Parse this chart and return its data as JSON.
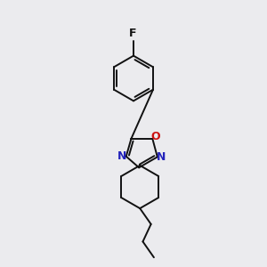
{
  "bg_color": "#ebebee",
  "bond_color": "#111111",
  "N_color": "#2222bb",
  "O_color": "#cc1111",
  "line_width": 1.4,
  "figsize": [
    3.0,
    3.0
  ],
  "dpi": 100,
  "xlim": [
    0.15,
    0.85
  ],
  "ylim": [
    0.02,
    0.99
  ]
}
